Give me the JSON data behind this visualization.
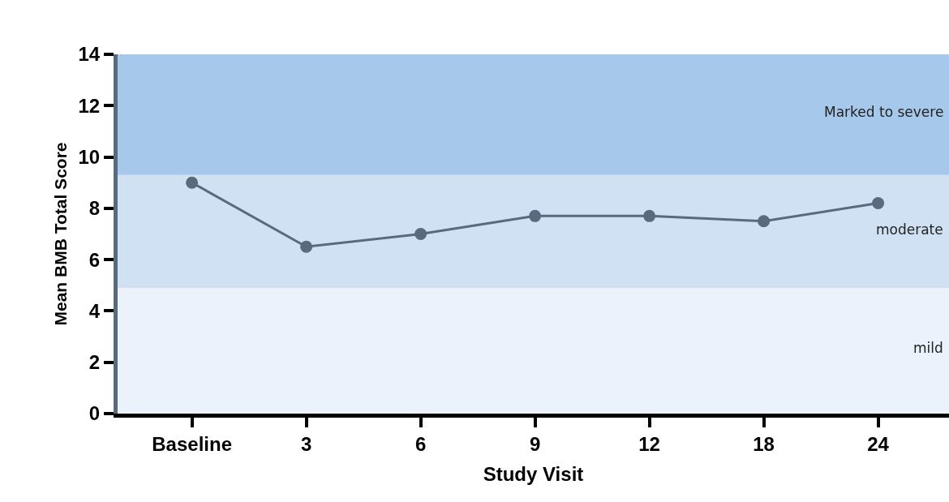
{
  "chart_data": {
    "type": "line",
    "xlabel": "Study Visit",
    "ylabel": "Mean BMB Total Score",
    "categories": [
      "Baseline",
      "3",
      "6",
      "9",
      "12",
      "18",
      "24"
    ],
    "series": [
      {
        "color": "#5a6a7e",
        "values": [
          9.0,
          6.5,
          7.0,
          7.7,
          7.7,
          7.5,
          8.2
        ]
      }
    ],
    "ylim": [
      0,
      14
    ],
    "yticks": [
      0,
      2,
      4,
      6,
      8,
      10,
      12,
      14
    ],
    "bands": [
      {
        "axis": "y",
        "from": 0,
        "to": 4.9,
        "label": "mild",
        "color": "#ebf2fb"
      },
      {
        "axis": "y",
        "from": 4.9,
        "to": 9.3,
        "label": "moderate",
        "color": "#d0e1f4"
      },
      {
        "axis": "y",
        "from": 9.3,
        "to": 14,
        "label": "Marked to severe",
        "color": "#a6c8ea"
      }
    ],
    "marker": "circle",
    "line_style": "solid",
    "grid": false
  }
}
